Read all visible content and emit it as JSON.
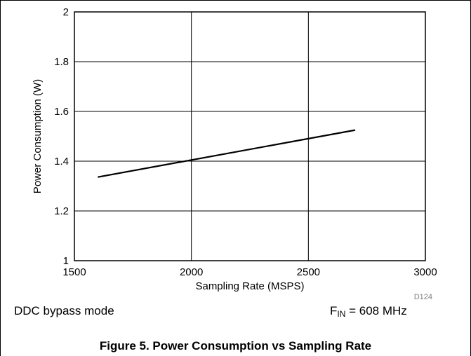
{
  "chart_data": {
    "type": "line",
    "xlabel": "Sampling Rate (MSPS)",
    "ylabel": "Power Consumption (W)",
    "xlim": [
      1500,
      3000
    ],
    "ylim": [
      1,
      2
    ],
    "x_ticks": [
      "1500",
      "2000",
      "2500",
      "3000"
    ],
    "y_ticks": [
      "1",
      "1.2",
      "1.4",
      "1.6",
      "1.8",
      "2"
    ],
    "grid": true,
    "series": [
      {
        "x": [
          1600,
          2700
        ],
        "y": [
          1.336,
          1.525
        ],
        "color": "#000000"
      }
    ],
    "figure_code": "D124"
  },
  "notes": {
    "left": "DDC bypass mode",
    "right_prefix": "F",
    "right_subscript": "IN",
    "right_suffix": " = 608 MHz"
  },
  "caption": "Figure 5. Power Consumption vs Sampling Rate"
}
